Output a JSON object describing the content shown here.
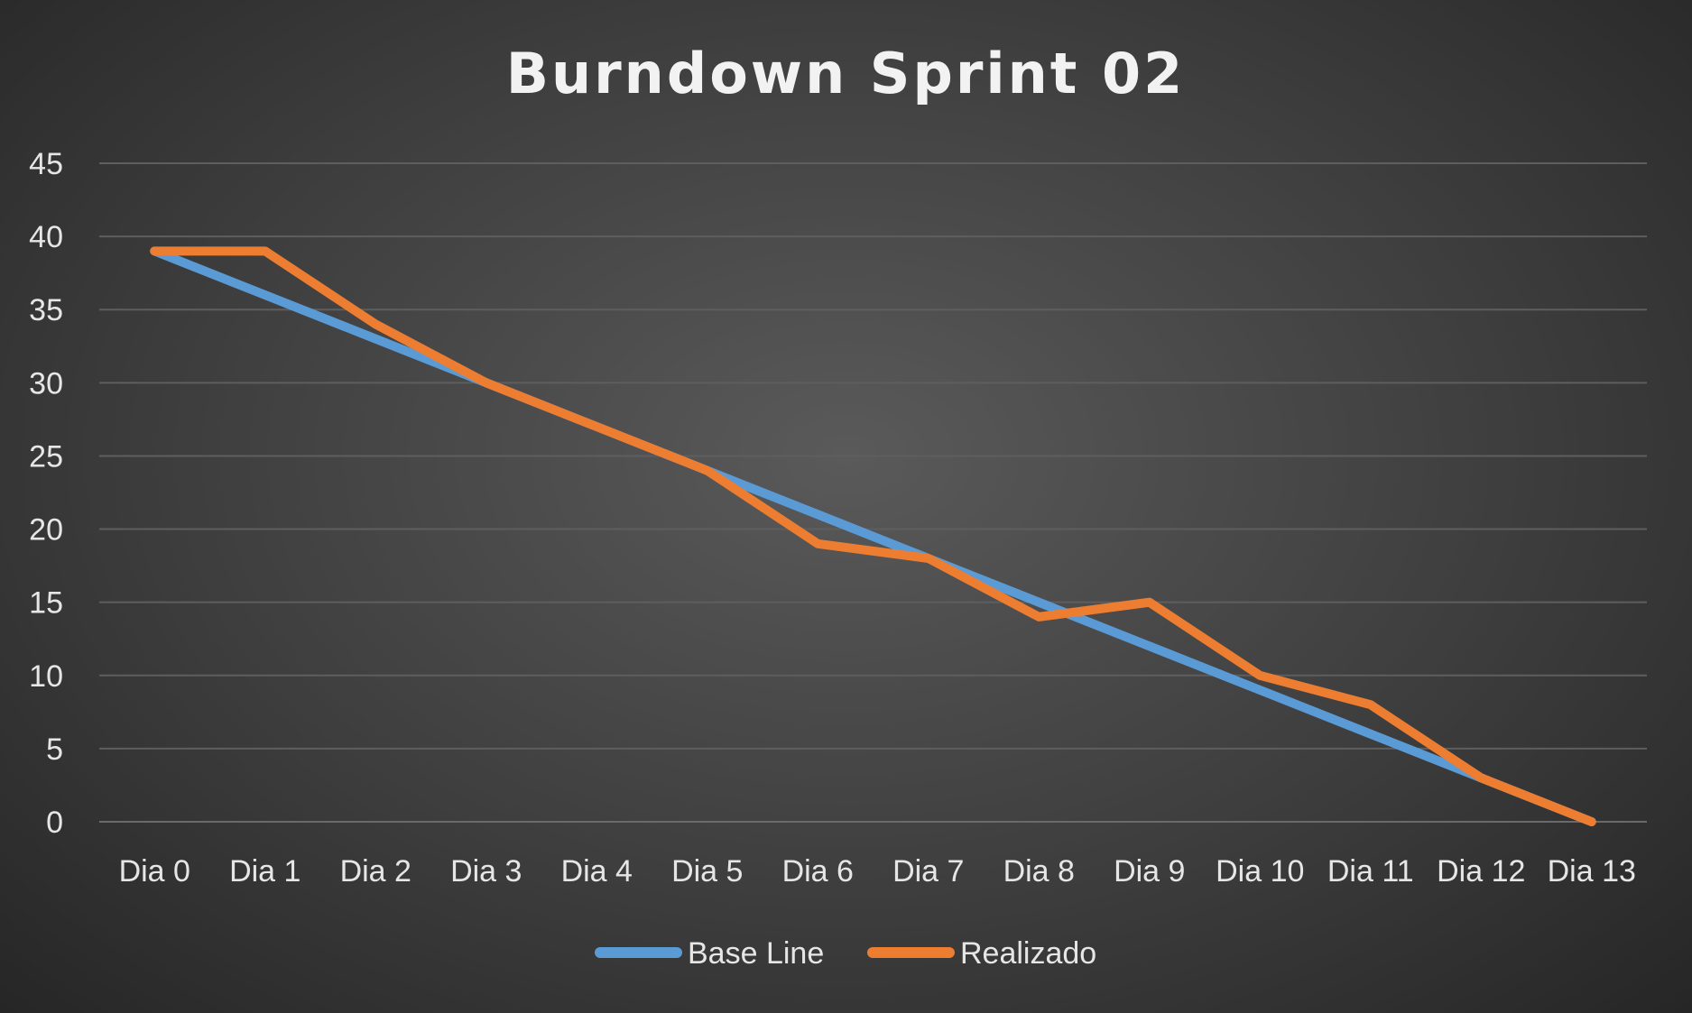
{
  "chart_data": {
    "type": "line",
    "title": "Burndown Sprint 02",
    "xlabel": "",
    "ylabel": "",
    "categories": [
      "Dia 0",
      "Dia 1",
      "Dia 2",
      "Dia 3",
      "Dia 4",
      "Dia 5",
      "Dia 6",
      "Dia 7",
      "Dia 8",
      "Dia 9",
      "Dia 10",
      "Dia 11",
      "Dia 12",
      "Dia 13"
    ],
    "ylim": [
      0,
      45
    ],
    "yticks": [
      "0",
      "5",
      "10",
      "15",
      "20",
      "25",
      "30",
      "35",
      "40",
      "45"
    ],
    "grid": true,
    "legend_position": "bottom",
    "series": [
      {
        "name": "Base Line",
        "color": "#5b9bd5",
        "values": [
          39,
          36,
          33,
          30,
          27,
          24,
          21,
          18,
          15,
          12,
          9,
          6,
          3,
          0
        ]
      },
      {
        "name": "Realizado",
        "color": "#ed7d31",
        "values": [
          39,
          39,
          34,
          30,
          27,
          24,
          19,
          18,
          14,
          15,
          10,
          8,
          3,
          0
        ]
      }
    ]
  }
}
